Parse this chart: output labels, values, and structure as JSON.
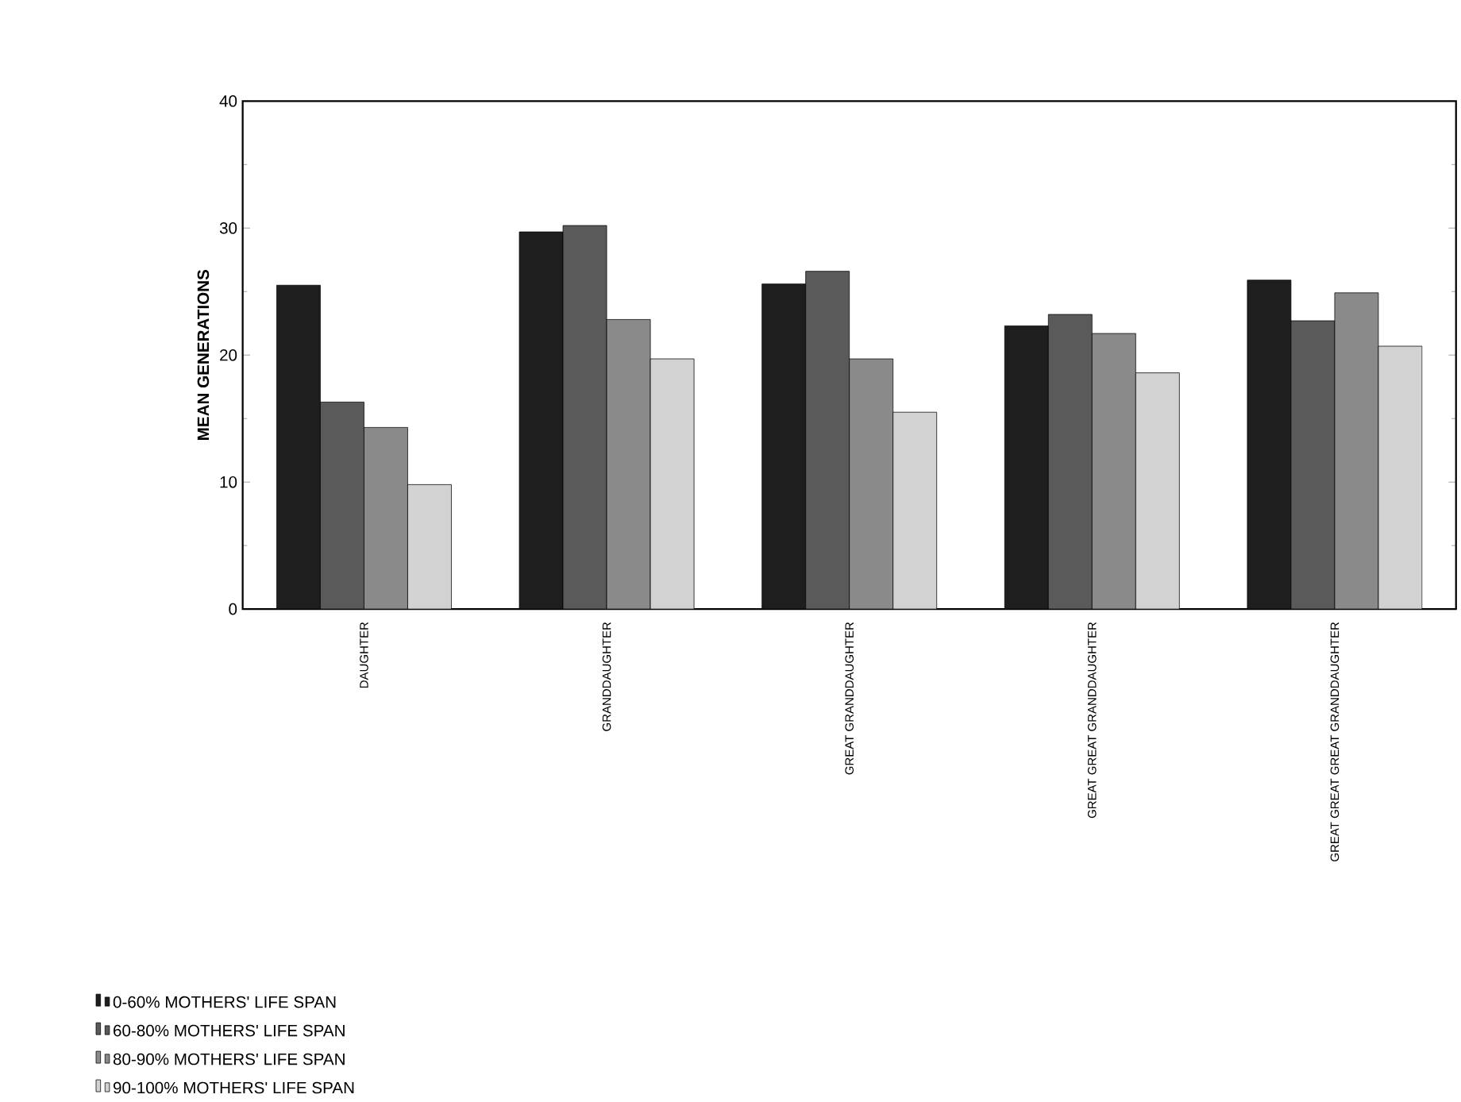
{
  "chart_data": {
    "type": "bar",
    "ylabel": "MEAN GENERATIONS",
    "categories": [
      "DAUGHTER",
      "GRANDDAUGHTER",
      "GREAT GRANDDAUGHTER",
      "GREAT GREAT GRANDDAUGHTER",
      "GREAT GREAT GREAT GRANDDAUGHTER"
    ],
    "series": [
      {
        "name": "0-60% MOTHERS' LIFE SPAN",
        "color": "#1e1e1e",
        "values": [
          25.5,
          29.7,
          25.6,
          22.3,
          25.9
        ]
      },
      {
        "name": "60-80% MOTHERS' LIFE SPAN",
        "color": "#5a5a5a",
        "values": [
          16.3,
          30.2,
          26.6,
          23.2,
          22.7
        ]
      },
      {
        "name": "80-90% MOTHERS' LIFE SPAN",
        "color": "#8a8a8a",
        "values": [
          14.3,
          22.8,
          19.7,
          21.7,
          24.9
        ]
      },
      {
        "name": "90-100% MOTHERS' LIFE SPAN",
        "color": "#d2d2d2",
        "values": [
          9.8,
          19.7,
          15.5,
          18.6,
          20.7
        ]
      }
    ],
    "ylim": [
      0,
      40
    ],
    "yticks": [
      0,
      10,
      20,
      30,
      40
    ],
    "legend": "bottom left"
  }
}
